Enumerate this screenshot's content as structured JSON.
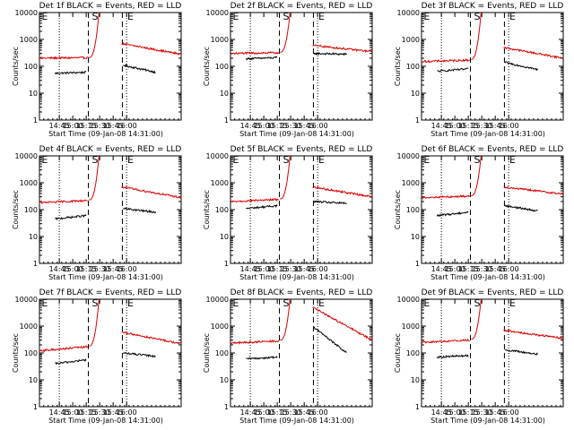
{
  "figure": {
    "xlabel": "Start Time (09-Jan-08 14:31:00)",
    "ylabel": "Counts/sec",
    "xticks": [
      "14:45",
      "15:00",
      "15:15",
      "15:30",
      "15:45",
      "16:00"
    ],
    "yticks": [
      "1",
      "10",
      "100",
      "1000",
      "10000"
    ],
    "markers": {
      "e1": "E",
      "s": "S",
      "e2": "E"
    }
  },
  "colors": {
    "events": "#000000",
    "lld": "#dd0000",
    "axes": "#000000",
    "background": "#ffffff"
  },
  "chart_data": [
    {
      "type": "line",
      "title": "Det 1f BLACK = Events, RED = LLD",
      "yscale": "log",
      "ylim": [
        1,
        10000
      ],
      "xlim": [
        0,
        100
      ],
      "series": [
        {
          "name": "Events",
          "segments": [
            {
              "x": [
                11,
                33
              ],
              "y": [
                55,
                60
              ]
            },
            {
              "x": [
                59,
                82
              ],
              "y": [
                110,
                60
              ]
            }
          ]
        },
        {
          "name": "LLD",
          "segments": [
            {
              "x": [
                0,
                34
              ],
              "y": [
                200,
                210
              ]
            },
            {
              "x": [
                35,
                42
              ],
              "y": [
                210,
                10000
              ]
            },
            {
              "x": [
                58,
                100
              ],
              "y": [
                700,
                280
              ]
            }
          ]
        }
      ]
    },
    {
      "type": "line",
      "title": "Det 2f BLACK = Events, RED = LLD",
      "yscale": "log",
      "ylim": [
        1,
        10000
      ],
      "xlim": [
        0,
        100
      ],
      "series": [
        {
          "name": "Events",
          "segments": [
            {
              "x": [
                11,
                33
              ],
              "y": [
                190,
                210
              ]
            },
            {
              "x": [
                59,
                82
              ],
              "y": [
                300,
                280
              ]
            }
          ]
        },
        {
          "name": "LLD",
          "segments": [
            {
              "x": [
                0,
                34
              ],
              "y": [
                300,
                320
              ]
            },
            {
              "x": [
                35,
                42
              ],
              "y": [
                330,
                10000
              ]
            },
            {
              "x": [
                58,
                100
              ],
              "y": [
                600,
                350
              ]
            }
          ]
        }
      ]
    },
    {
      "type": "line",
      "title": "Det 3f BLACK = Events, RED = LLD",
      "yscale": "log",
      "ylim": [
        1,
        10000
      ],
      "xlim": [
        0,
        100
      ],
      "series": [
        {
          "name": "Events",
          "segments": [
            {
              "x": [
                11,
                33
              ],
              "y": [
                65,
                80
              ]
            },
            {
              "x": [
                59,
                82
              ],
              "y": [
                140,
                75
              ]
            }
          ]
        },
        {
          "name": "LLD",
          "segments": [
            {
              "x": [
                0,
                34
              ],
              "y": [
                150,
                170
              ]
            },
            {
              "x": [
                35,
                42
              ],
              "y": [
                180,
                10000
              ]
            },
            {
              "x": [
                58,
                100
              ],
              "y": [
                500,
                200
              ]
            }
          ]
        }
      ]
    },
    {
      "type": "line",
      "title": "Det 4f BLACK = Events, RED = LLD",
      "yscale": "log",
      "ylim": [
        1,
        10000
      ],
      "xlim": [
        0,
        100
      ],
      "series": [
        {
          "name": "Events",
          "segments": [
            {
              "x": [
                11,
                33
              ],
              "y": [
                45,
                60
              ]
            },
            {
              "x": [
                59,
                82
              ],
              "y": [
                110,
                80
              ]
            }
          ]
        },
        {
          "name": "LLD",
          "segments": [
            {
              "x": [
                0,
                34
              ],
              "y": [
                180,
                220
              ]
            },
            {
              "x": [
                35,
                42
              ],
              "y": [
                230,
                10000
              ]
            },
            {
              "x": [
                58,
                100
              ],
              "y": [
                700,
                280
              ]
            }
          ]
        }
      ]
    },
    {
      "type": "line",
      "title": "Det 5f BLACK = Events, RED = LLD",
      "yscale": "log",
      "ylim": [
        1,
        10000
      ],
      "xlim": [
        0,
        100
      ],
      "series": [
        {
          "name": "Events",
          "segments": [
            {
              "x": [
                11,
                33
              ],
              "y": [
                110,
                140
              ]
            },
            {
              "x": [
                59,
                82
              ],
              "y": [
                200,
                170
              ]
            }
          ]
        },
        {
          "name": "LLD",
          "segments": [
            {
              "x": [
                0,
                34
              ],
              "y": [
                200,
                240
              ]
            },
            {
              "x": [
                35,
                42
              ],
              "y": [
                250,
                10000
              ]
            },
            {
              "x": [
                58,
                100
              ],
              "y": [
                700,
                300
              ]
            }
          ]
        }
      ]
    },
    {
      "type": "line",
      "title": "Det 6f BLACK = Events, RED = LLD",
      "yscale": "log",
      "ylim": [
        1,
        10000
      ],
      "xlim": [
        0,
        100
      ],
      "series": [
        {
          "name": "Events",
          "segments": [
            {
              "x": [
                11,
                33
              ],
              "y": [
                60,
                80
              ]
            },
            {
              "x": [
                59,
                82
              ],
              "y": [
                140,
                90
              ]
            }
          ]
        },
        {
          "name": "LLD",
          "segments": [
            {
              "x": [
                0,
                34
              ],
              "y": [
                280,
                320
              ]
            },
            {
              "x": [
                35,
                42
              ],
              "y": [
                330,
                10000
              ]
            },
            {
              "x": [
                58,
                100
              ],
              "y": [
                700,
                380
              ]
            }
          ]
        }
      ]
    },
    {
      "type": "line",
      "title": "Det 7f BLACK = Events, RED = LLD",
      "yscale": "log",
      "ylim": [
        1,
        10000
      ],
      "xlim": [
        0,
        100
      ],
      "series": [
        {
          "name": "Events",
          "segments": [
            {
              "x": [
                11,
                33
              ],
              "y": [
                40,
                55
              ]
            },
            {
              "x": [
                59,
                82
              ],
              "y": [
                100,
                75
              ]
            }
          ]
        },
        {
          "name": "LLD",
          "segments": [
            {
              "x": [
                0,
                34
              ],
              "y": [
                120,
                170
              ]
            },
            {
              "x": [
                35,
                42
              ],
              "y": [
                180,
                10000
              ]
            },
            {
              "x": [
                58,
                100
              ],
              "y": [
                600,
                220
              ]
            }
          ]
        }
      ]
    },
    {
      "type": "line",
      "title": "Det 8f BLACK = Events, RED = LLD",
      "yscale": "log",
      "ylim": [
        1,
        10000
      ],
      "xlim": [
        0,
        100
      ],
      "series": [
        {
          "name": "Events",
          "segments": [
            {
              "x": [
                11,
                33
              ],
              "y": [
                60,
                70
              ]
            },
            {
              "x": [
                59,
                82
              ],
              "y": [
                900,
                100
              ]
            }
          ]
        },
        {
          "name": "LLD",
          "segments": [
            {
              "x": [
                0,
                34
              ],
              "y": [
                230,
                280
              ]
            },
            {
              "x": [
                35,
                42
              ],
              "y": [
                300,
                10000
              ]
            },
            {
              "x": [
                58,
                100
              ],
              "y": [
                5000,
                300
              ]
            }
          ]
        }
      ]
    },
    {
      "type": "line",
      "title": "Det 9f BLACK = Events, RED = LLD",
      "yscale": "log",
      "ylim": [
        1,
        10000
      ],
      "xlim": [
        0,
        100
      ],
      "series": [
        {
          "name": "Events",
          "segments": [
            {
              "x": [
                11,
                33
              ],
              "y": [
                70,
                80
              ]
            },
            {
              "x": [
                59,
                82
              ],
              "y": [
                130,
                90
              ]
            }
          ]
        },
        {
          "name": "LLD",
          "segments": [
            {
              "x": [
                0,
                34
              ],
              "y": [
                250,
                300
              ]
            },
            {
              "x": [
                35,
                42
              ],
              "y": [
                320,
                10000
              ]
            },
            {
              "x": [
                58,
                100
              ],
              "y": [
                700,
                350
              ]
            }
          ]
        }
      ]
    }
  ]
}
